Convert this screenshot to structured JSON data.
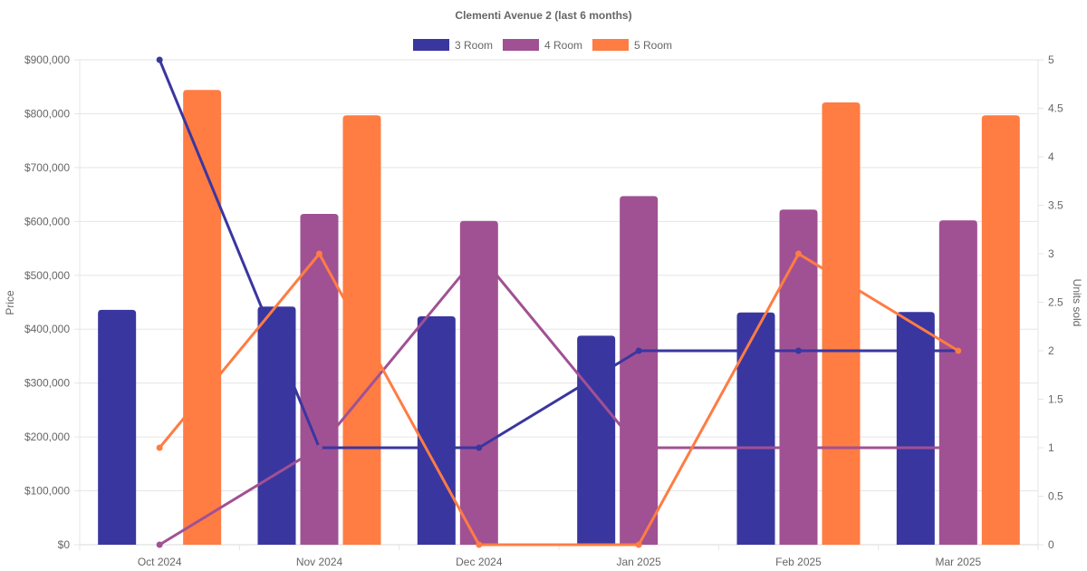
{
  "chart_data": {
    "type": "bar",
    "title": "Clementi Avenue 2 (last 6 months)",
    "categories": [
      "Oct 2024",
      "Nov 2024",
      "Dec 2024",
      "Jan 2025",
      "Feb 2025",
      "Mar 2025"
    ],
    "ylabel": "Price",
    "y2label": "Units sold",
    "ylim": [
      0,
      900000
    ],
    "y2lim": [
      0,
      5
    ],
    "yticks": [
      "$0",
      "$100,000",
      "$200,000",
      "$300,000",
      "$400,000",
      "$500,000",
      "$600,000",
      "$700,000",
      "$800,000",
      "$900,000"
    ],
    "y2ticks": [
      "0",
      "0.5",
      "1",
      "1.5",
      "2",
      "2.5",
      "3",
      "3.5",
      "4",
      "4.5",
      "5"
    ],
    "grid": true,
    "legend_position": "top",
    "series": [
      {
        "name": "3 Room",
        "color": "#3a36a0",
        "type": "bar",
        "axis": "price",
        "values": [
          436000,
          442000,
          424000,
          388000,
          431000,
          432000
        ]
      },
      {
        "name": "4 Room",
        "color": "#a05193",
        "type": "bar",
        "axis": "price",
        "values": [
          null,
          614000,
          601000,
          647000,
          622000,
          602000
        ]
      },
      {
        "name": "5 Room",
        "color": "#ff7c43",
        "type": "bar",
        "axis": "price",
        "values": [
          844000,
          797000,
          null,
          null,
          821000,
          797000
        ]
      }
    ],
    "lines": [
      {
        "name": "3 Room",
        "color": "#3a36a0",
        "type": "line",
        "axis": "units",
        "values": [
          5,
          1,
          1,
          2,
          2,
          2
        ]
      },
      {
        "name": "4 Room",
        "color": "#a05193",
        "type": "line",
        "axis": "units",
        "values": [
          0,
          1,
          3,
          1,
          1,
          1
        ]
      },
      {
        "name": "5 Room",
        "color": "#ff7c43",
        "type": "line",
        "axis": "units",
        "values": [
          1,
          3,
          0,
          0,
          3,
          2
        ]
      }
    ]
  }
}
